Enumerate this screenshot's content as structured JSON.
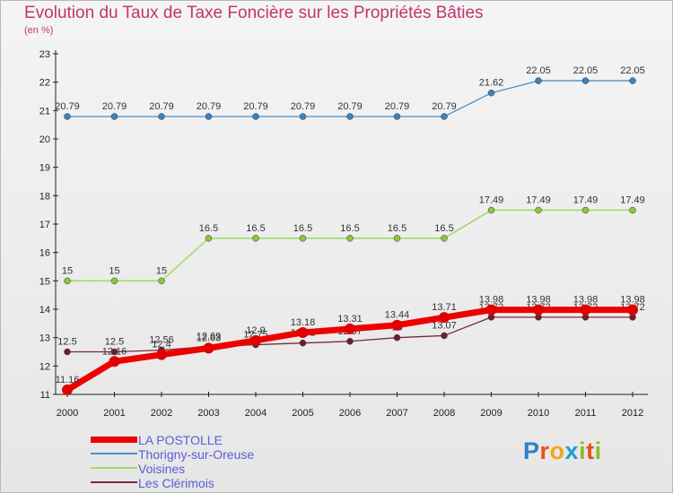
{
  "title": "Evolution du Taux de Taxe Foncière sur les Propriétés Bâties",
  "subtitle": "(en %)",
  "logo": {
    "text": "Proxiti",
    "colors": [
      "#2f7fc8",
      "#e94e1b",
      "#f2a51a",
      "#1d9fd6",
      "#8bbd2a",
      "#e94e1b",
      "#8bbd2a"
    ]
  },
  "chart_data": {
    "type": "line",
    "title": "Evolution du Taux de Taxe Foncière sur les Propriétés Bâties",
    "ylabel": "(en %)",
    "xlabel": "",
    "x": [
      "2000",
      "2001",
      "2002",
      "2003",
      "2004",
      "2005",
      "2006",
      "2007",
      "2008",
      "2009",
      "2010",
      "2011",
      "2012"
    ],
    "ylim": [
      11,
      23
    ],
    "yticks": [
      "11",
      "12",
      "13",
      "14",
      "15",
      "16",
      "17",
      "18",
      "19",
      "20",
      "21",
      "22",
      "23"
    ],
    "grid": false,
    "legend_position": "bottom-left",
    "series": [
      {
        "name": "Thorigny-sur-Oreuse",
        "color": "#4a90c8",
        "width": 1.3,
        "marker": "#3b82c0",
        "values": [
          20.79,
          20.79,
          20.79,
          20.79,
          20.79,
          20.79,
          20.79,
          20.79,
          20.79,
          21.62,
          22.05,
          22.05,
          22.05
        ],
        "labels": [
          "20.79",
          "20.79",
          "20.79",
          "20.79",
          "20.79",
          "20.79",
          "20.79",
          "20.79",
          "20.79",
          "21.62",
          "22.05",
          "22.05",
          "22.05"
        ]
      },
      {
        "name": "Voisines",
        "color": "#a6d96a",
        "width": 1.6,
        "marker": "#8cc63f",
        "values": [
          15,
          15,
          15,
          16.5,
          16.5,
          16.5,
          16.5,
          16.5,
          16.5,
          17.49,
          17.49,
          17.49,
          17.49
        ],
        "labels": [
          "15",
          "15",
          "15",
          "16.5",
          "16.5",
          "16.5",
          "16.5",
          "16.5",
          "16.5",
          "17.49",
          "17.49",
          "17.49",
          "17.49"
        ]
      },
      {
        "name": "Les Clérimois",
        "color": "#7a2a3a",
        "width": 1.3,
        "marker": "#6a1f2c",
        "values": [
          12.5,
          12.5,
          12.56,
          12.69,
          12.75,
          12.81,
          12.87,
          13.0,
          13.07,
          13.72,
          13.72,
          13.72,
          13.72
        ],
        "labels": [
          "12.5",
          "12.5",
          "12.56",
          "12.69",
          "12.75",
          "12.81",
          "12.87",
          "13",
          "13.07",
          "13.72",
          "13.72",
          "13.72",
          "13.72"
        ]
      },
      {
        "name": "LA POSTOLLE",
        "color": "#ee0000",
        "width": 7,
        "marker": "#e00000",
        "values": [
          11.16,
          12.16,
          12.4,
          12.63,
          12.9,
          13.18,
          13.31,
          13.44,
          13.71,
          13.98,
          13.98,
          13.98,
          13.98
        ],
        "labels": [
          "11.16",
          "12.16",
          "12.4",
          "12.63",
          "12.9",
          "13.18",
          "13.31",
          "13.44",
          "13.71",
          "13.98",
          "13.98",
          "13.98",
          "13.98"
        ]
      }
    ],
    "legend": [
      {
        "name": "LA POSTOLLE",
        "color": "#ee0000",
        "thickness": 7,
        "label_color": "#5b5bd6"
      },
      {
        "name": "Thorigny-sur-Oreuse",
        "color": "#4a90c8",
        "thickness": 2,
        "label_color": "#5b5bd6"
      },
      {
        "name": "Voisines",
        "color": "#a6d96a",
        "thickness": 2,
        "label_color": "#5b5bd6"
      },
      {
        "name": "Les Clérimois",
        "color": "#7a2a3a",
        "thickness": 2,
        "label_color": "#5b5bd6"
      }
    ]
  }
}
